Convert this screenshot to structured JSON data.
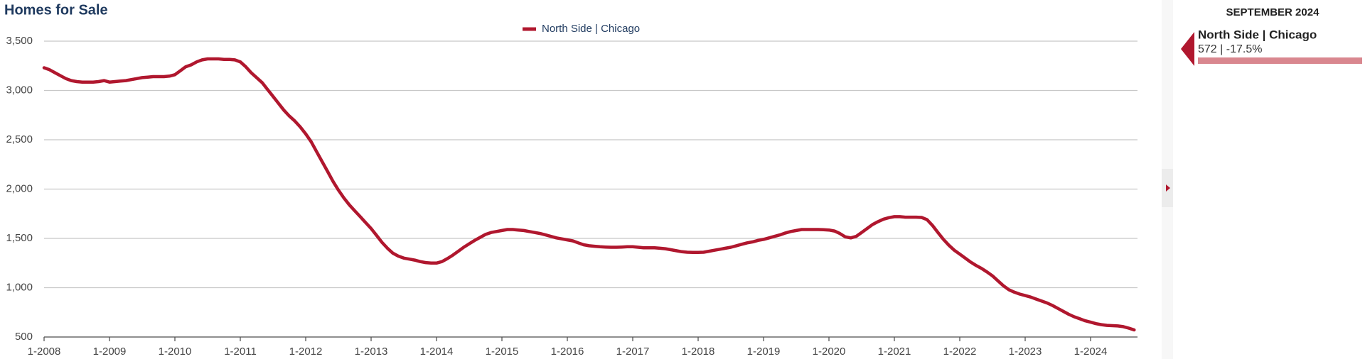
{
  "chart_data": {
    "type": "line",
    "title": "Homes for Sale",
    "categories": [
      "1-2008",
      "2-2008",
      "3-2008",
      "4-2008",
      "5-2008",
      "6-2008",
      "7-2008",
      "8-2008",
      "9-2008",
      "10-2008",
      "11-2008",
      "12-2008",
      "1-2009",
      "2-2009",
      "3-2009",
      "4-2009",
      "5-2009",
      "6-2009",
      "7-2009",
      "8-2009",
      "9-2009",
      "10-2009",
      "11-2009",
      "12-2009",
      "1-2010",
      "2-2010",
      "3-2010",
      "4-2010",
      "5-2010",
      "6-2010",
      "7-2010",
      "8-2010",
      "9-2010",
      "10-2010",
      "11-2010",
      "12-2010",
      "1-2011",
      "2-2011",
      "3-2011",
      "4-2011",
      "5-2011",
      "6-2011",
      "7-2011",
      "8-2011",
      "9-2011",
      "10-2011",
      "11-2011",
      "12-2011",
      "1-2012",
      "2-2012",
      "3-2012",
      "4-2012",
      "5-2012",
      "6-2012",
      "7-2012",
      "8-2012",
      "9-2012",
      "10-2012",
      "11-2012",
      "12-2012",
      "1-2013",
      "2-2013",
      "3-2013",
      "4-2013",
      "5-2013",
      "6-2013",
      "7-2013",
      "8-2013",
      "9-2013",
      "10-2013",
      "11-2013",
      "12-2013",
      "1-2014",
      "2-2014",
      "3-2014",
      "4-2014",
      "5-2014",
      "6-2014",
      "7-2014",
      "8-2014",
      "9-2014",
      "10-2014",
      "11-2014",
      "12-2014",
      "1-2015",
      "2-2015",
      "3-2015",
      "4-2015",
      "5-2015",
      "6-2015",
      "7-2015",
      "8-2015",
      "9-2015",
      "10-2015",
      "11-2015",
      "12-2015",
      "1-2016",
      "2-2016",
      "3-2016",
      "4-2016",
      "5-2016",
      "6-2016",
      "7-2016",
      "8-2016",
      "9-2016",
      "10-2016",
      "11-2016",
      "12-2016",
      "1-2017",
      "2-2017",
      "3-2017",
      "4-2017",
      "5-2017",
      "6-2017",
      "7-2017",
      "8-2017",
      "9-2017",
      "10-2017",
      "11-2017",
      "12-2017",
      "1-2018",
      "2-2018",
      "3-2018",
      "4-2018",
      "5-2018",
      "6-2018",
      "7-2018",
      "8-2018",
      "9-2018",
      "10-2018",
      "11-2018",
      "12-2018",
      "1-2019",
      "2-2019",
      "3-2019",
      "4-2019",
      "5-2019",
      "6-2019",
      "7-2019",
      "8-2019",
      "9-2019",
      "10-2019",
      "11-2019",
      "12-2019",
      "1-2020",
      "2-2020",
      "3-2020",
      "4-2020",
      "5-2020",
      "6-2020",
      "7-2020",
      "8-2020",
      "9-2020",
      "10-2020",
      "11-2020",
      "12-2020",
      "1-2021",
      "2-2021",
      "3-2021",
      "4-2021",
      "5-2021",
      "6-2021",
      "7-2021",
      "8-2021",
      "9-2021",
      "10-2021",
      "11-2021",
      "12-2021",
      "1-2022",
      "2-2022",
      "3-2022",
      "4-2022",
      "5-2022",
      "6-2022",
      "7-2022",
      "8-2022",
      "9-2022",
      "10-2022",
      "11-2022",
      "12-2022",
      "1-2023",
      "2-2023",
      "3-2023",
      "4-2023",
      "5-2023",
      "6-2023",
      "7-2023",
      "8-2023",
      "9-2023",
      "10-2023",
      "11-2023",
      "12-2023",
      "1-2024",
      "2-2024",
      "3-2024",
      "4-2024",
      "5-2024",
      "6-2024",
      "7-2024",
      "8-2024",
      "9-2024"
    ],
    "series": [
      {
        "name": "North Side | Chicago",
        "color": "#b0172e",
        "values": [
          3230,
          3210,
          3180,
          3150,
          3120,
          3100,
          3090,
          3085,
          3085,
          3085,
          3090,
          3100,
          3085,
          3090,
          3095,
          3100,
          3110,
          3120,
          3130,
          3135,
          3140,
          3140,
          3140,
          3145,
          3160,
          3200,
          3240,
          3260,
          3290,
          3310,
          3320,
          3320,
          3320,
          3315,
          3315,
          3310,
          3290,
          3240,
          3180,
          3130,
          3080,
          3010,
          2940,
          2870,
          2800,
          2740,
          2690,
          2630,
          2560,
          2480,
          2380,
          2280,
          2180,
          2080,
          1990,
          1910,
          1840,
          1780,
          1720,
          1660,
          1600,
          1530,
          1460,
          1400,
          1350,
          1320,
          1300,
          1290,
          1280,
          1265,
          1255,
          1250,
          1250,
          1265,
          1295,
          1330,
          1370,
          1410,
          1445,
          1480,
          1510,
          1540,
          1560,
          1570,
          1580,
          1590,
          1590,
          1585,
          1580,
          1570,
          1560,
          1550,
          1535,
          1520,
          1505,
          1495,
          1485,
          1475,
          1455,
          1435,
          1425,
          1420,
          1415,
          1412,
          1410,
          1410,
          1412,
          1415,
          1415,
          1410,
          1405,
          1405,
          1405,
          1400,
          1395,
          1385,
          1375,
          1365,
          1360,
          1358,
          1358,
          1360,
          1370,
          1380,
          1390,
          1400,
          1410,
          1425,
          1440,
          1455,
          1465,
          1480,
          1490,
          1505,
          1520,
          1535,
          1555,
          1570,
          1580,
          1590,
          1590,
          1590,
          1590,
          1588,
          1585,
          1575,
          1550,
          1515,
          1505,
          1520,
          1560,
          1600,
          1640,
          1670,
          1695,
          1710,
          1720,
          1720,
          1715,
          1715,
          1715,
          1712,
          1690,
          1630,
          1560,
          1490,
          1430,
          1380,
          1340,
          1300,
          1260,
          1225,
          1195,
          1160,
          1120,
          1070,
          1020,
          980,
          955,
          935,
          920,
          905,
          885,
          865,
          845,
          820,
          790,
          760,
          730,
          705,
          685,
          665,
          650,
          635,
          625,
          618,
          615,
          612,
          605,
          590,
          572
        ]
      }
    ],
    "xticks": [
      "1-2008",
      "1-2009",
      "1-2010",
      "1-2011",
      "1-2012",
      "1-2013",
      "1-2014",
      "1-2015",
      "1-2016",
      "1-2017",
      "1-2018",
      "1-2019",
      "1-2020",
      "1-2021",
      "1-2022",
      "1-2023",
      "1-2024"
    ],
    "ylim": [
      500,
      3500
    ],
    "yticks": [
      {
        "value": 500,
        "label": "500"
      },
      {
        "value": 1000,
        "label": "1,000"
      },
      {
        "value": 1500,
        "label": "1,500"
      },
      {
        "value": 2000,
        "label": "2,000"
      },
      {
        "value": 2500,
        "label": "2,500"
      },
      {
        "value": 3000,
        "label": "3,000"
      },
      {
        "value": 3500,
        "label": "3,500"
      }
    ],
    "grid": true
  },
  "panel": {
    "date": "SEPTEMBER 2024",
    "name": "North Side | Chicago",
    "value": "572 | -17.5%"
  }
}
